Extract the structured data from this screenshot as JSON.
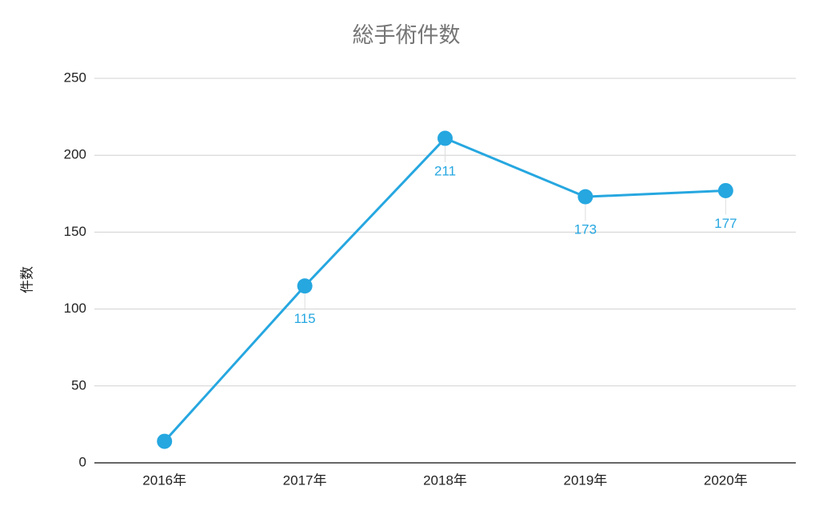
{
  "chart_data": {
    "type": "line",
    "title": "総手術件数",
    "y_label": "件数",
    "categories": [
      "2016年",
      "2017年",
      "2018年",
      "2019年",
      "2020年"
    ],
    "series": [
      {
        "name": "総手術件数",
        "color": "#26a7e0",
        "values": [
          14,
          115,
          211,
          173,
          177
        ],
        "value_labels": [
          null,
          "115",
          "211",
          "173",
          "177"
        ]
      }
    ],
    "ylim": [
      0,
      250
    ],
    "yticks": [
      0,
      50,
      100,
      150,
      200,
      250
    ],
    "grid": true
  }
}
